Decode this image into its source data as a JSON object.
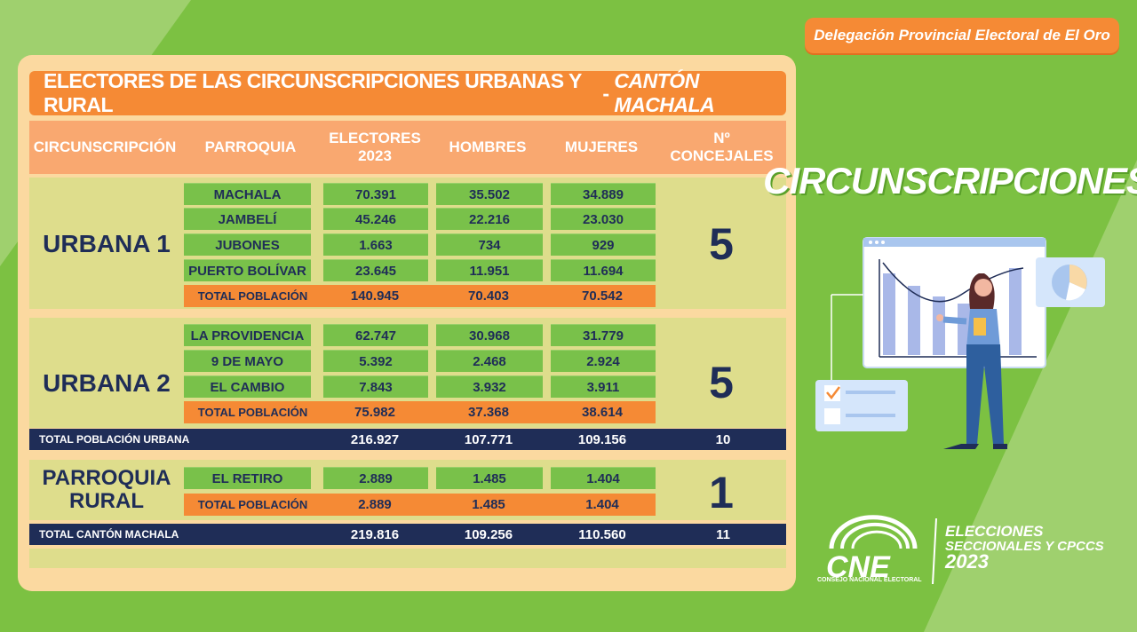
{
  "badge": "Delegación Provincial Electoral de El Oro",
  "title": {
    "main": "ELECTORES DE LAS CIRCUNSCRIPCIONES URBANAS Y RURAL",
    "sep": " - ",
    "emph": "CANTÓN MACHALA"
  },
  "headers": {
    "circ": "CIRCUNSCRIPCIÓN",
    "parroquia": "PARROQUIA",
    "electores_1": "ELECTORES",
    "electores_2": "2023",
    "hombres": "HOMBRES",
    "mujeres": "MUJERES",
    "concejales_1": "Nº",
    "concejales_2": "CONCEJALES"
  },
  "urbana1": {
    "label": "URBANA 1",
    "concejales": "5",
    "rows": [
      {
        "parroquia": "MACHALA",
        "electores": "70.391",
        "hombres": "35.502",
        "mujeres": "34.889"
      },
      {
        "parroquia": "JAMBELÍ",
        "electores": "45.246",
        "hombres": "22.216",
        "mujeres": "23.030"
      },
      {
        "parroquia": "JUBONES",
        "electores": "1.663",
        "hombres": "734",
        "mujeres": "929"
      },
      {
        "parroquia": "PUERTO BOLÍVAR",
        "electores": "23.645",
        "hombres": "11.951",
        "mujeres": "11.694"
      }
    ],
    "total": {
      "label": "TOTAL POBLACIÓN",
      "electores": "140.945",
      "hombres": "70.403",
      "mujeres": "70.542"
    }
  },
  "urbana2": {
    "label": "URBANA 2",
    "concejales": "5",
    "rows": [
      {
        "parroquia": "LA PROVIDENCIA",
        "electores": "62.747",
        "hombres": "30.968",
        "mujeres": "31.779"
      },
      {
        "parroquia": "9 DE MAYO",
        "electores": "5.392",
        "hombres": "2.468",
        "mujeres": "2.924"
      },
      {
        "parroquia": "EL CAMBIO",
        "electores": "7.843",
        "hombres": "3.932",
        "mujeres": "3.911"
      }
    ],
    "total": {
      "label": "TOTAL POBLACIÓN",
      "electores": "75.982",
      "hombres": "37.368",
      "mujeres": "38.614"
    }
  },
  "total_urbana": {
    "label": "TOTAL POBLACIÓN URBANA",
    "electores": "216.927",
    "hombres": "107.771",
    "mujeres": "109.156",
    "concejales": "10"
  },
  "rural": {
    "label_1": "PARROQUIA",
    "label_2": "RURAL",
    "concejales": "1",
    "rows": [
      {
        "parroquia": "EL RETIRO",
        "electores": "2.889",
        "hombres": "1.485",
        "mujeres": "1.404"
      }
    ],
    "total": {
      "label": "TOTAL POBLACIÓN",
      "electores": "2.889",
      "hombres": "1.485",
      "mujeres": "1.404"
    }
  },
  "total_canton": {
    "label": "TOTAL CANTÓN MACHALA",
    "electores": "219.816",
    "hombres": "109.256",
    "mujeres": "110.560",
    "concejales": "11"
  },
  "side_heading": "CIRCUNSCRIPCIONES",
  "illustration_icons": [
    "bar-chart-window-icon",
    "pie-chart-icon",
    "checklist-icon",
    "woman-presenter-icon"
  ],
  "logo": {
    "cne": "CNE",
    "cne_sub": "CONSEJO NACIONAL ELECTORAL",
    "line1": "ELECCIONES",
    "line2": "SECCIONALES Y CPCCS",
    "year": "2023"
  },
  "colors": {
    "background": "#7cc142",
    "orange": "#f58a35",
    "navy": "#1f2d57",
    "panel": "#fbd9a0",
    "block": "#dedd8c",
    "green_cell": "#79c14a"
  }
}
